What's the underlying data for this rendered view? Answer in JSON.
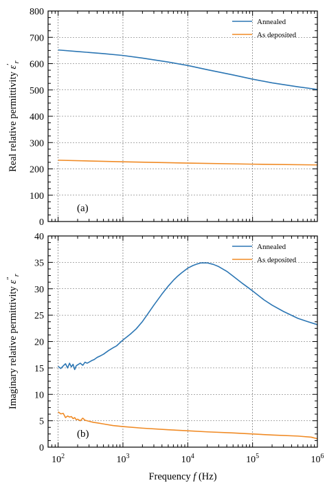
{
  "colors": {
    "annealed": "#2a75b3",
    "as_deposited": "#f08a24"
  },
  "chart_data": [
    {
      "type": "line",
      "panel_tag": "(a)",
      "ylabel": "Real relative permittivity ε′r",
      "ylabel_parts": {
        "text": "Real relative permittivity ",
        "symbol": "ε",
        "sup": "′",
        "sub": "r"
      },
      "xscale": "log",
      "xlim": [
        70,
        1000000
      ],
      "ylim": [
        0,
        800
      ],
      "yticks": [
        0,
        100,
        200,
        300,
        400,
        500,
        600,
        700,
        800
      ],
      "ytick_labels": [
        "0",
        "100",
        "200",
        "300",
        "400",
        "500",
        "600",
        "700",
        "800"
      ],
      "grid": true,
      "legend": "top-right",
      "series": [
        {
          "name": "Annealed",
          "color_key": "annealed",
          "x": [
            100,
            200,
            500,
            1000,
            2000,
            5000,
            10000,
            20000,
            50000,
            100000,
            200000,
            500000,
            1000000
          ],
          "y": [
            652,
            646,
            638,
            631,
            621,
            606,
            593,
            577,
            557,
            541,
            527,
            512,
            502
          ]
        },
        {
          "name": "As deposited",
          "color_key": "as_deposited",
          "x": [
            100,
            1000,
            10000,
            100000,
            1000000
          ],
          "y": [
            233,
            227,
            222,
            218,
            215
          ]
        }
      ]
    },
    {
      "type": "line",
      "panel_tag": "(b)",
      "ylabel": "Imaginary relative permittivity ε″r",
      "ylabel_parts": {
        "text": "Imaginary relative permittivity ",
        "symbol": "ε",
        "sup": "″",
        "sub": "r"
      },
      "xlabel": "Frequency f (Hz)",
      "xlabel_parts": {
        "text": "Frequency ",
        "symbol": "f",
        "unit": " (Hz)"
      },
      "xscale": "log",
      "xlim": [
        70,
        1000000
      ],
      "xticks": [
        100,
        1000,
        10000,
        100000,
        1000000
      ],
      "xtick_labels": [
        {
          "base": "10",
          "exp": "2"
        },
        {
          "base": "10",
          "exp": "3"
        },
        {
          "base": "10",
          "exp": "4"
        },
        {
          "base": "10",
          "exp": "5"
        },
        {
          "base": "10",
          "exp": "6"
        }
      ],
      "ylim": [
        0,
        40
      ],
      "yticks": [
        0,
        5,
        10,
        15,
        20,
        25,
        30,
        35,
        40
      ],
      "ytick_labels": [
        "0",
        "5",
        "10",
        "15",
        "20",
        "25",
        "30",
        "35",
        "40"
      ],
      "grid": true,
      "legend": "top-right",
      "series": [
        {
          "name": "Annealed",
          "color_key": "annealed",
          "x": [
            100,
            110,
            120,
            130,
            140,
            150,
            160,
            170,
            180,
            190,
            200,
            220,
            240,
            260,
            280,
            300,
            330,
            360,
            400,
            450,
            500,
            600,
            700,
            800,
            1000,
            1300,
            1600,
            2000,
            2500,
            3000,
            4000,
            5000,
            6000,
            7000,
            8000,
            10000,
            12000,
            14000,
            16000,
            20000,
            25000,
            30000,
            40000,
            50000,
            70000,
            100000,
            150000,
            200000,
            300000,
            500000,
            700000,
            1000000
          ],
          "y": [
            15.3,
            14.9,
            15.4,
            15.8,
            15.0,
            15.9,
            15.2,
            15.7,
            14.7,
            15.4,
            15.6,
            15.9,
            15.5,
            16.1,
            15.9,
            16.1,
            16.4,
            16.6,
            17.0,
            17.3,
            17.6,
            18.3,
            18.8,
            19.2,
            20.3,
            21.4,
            22.4,
            23.8,
            25.5,
            26.9,
            29.0,
            30.5,
            31.6,
            32.4,
            33.0,
            33.9,
            34.4,
            34.7,
            34.9,
            34.9,
            34.6,
            34.2,
            33.3,
            32.4,
            31.0,
            29.6,
            27.9,
            26.9,
            25.7,
            24.4,
            23.8,
            23.2
          ]
        },
        {
          "name": "As deposited",
          "color_key": "as_deposited",
          "x": [
            100,
            110,
            120,
            130,
            140,
            150,
            160,
            170,
            180,
            190,
            200,
            220,
            240,
            260,
            280,
            300,
            350,
            400,
            500,
            700,
            1000,
            2000,
            5000,
            10000,
            20000,
            50000,
            100000,
            200000,
            500000,
            800000,
            1000000
          ],
          "y": [
            6.7,
            6.3,
            6.4,
            5.6,
            5.9,
            5.7,
            5.8,
            5.4,
            5.6,
            5.2,
            5.3,
            5.0,
            5.5,
            5.1,
            5.0,
            4.9,
            4.7,
            4.6,
            4.4,
            4.1,
            3.9,
            3.6,
            3.3,
            3.1,
            2.9,
            2.7,
            2.5,
            2.3,
            2.1,
            1.9,
            1.6
          ]
        }
      ]
    }
  ]
}
